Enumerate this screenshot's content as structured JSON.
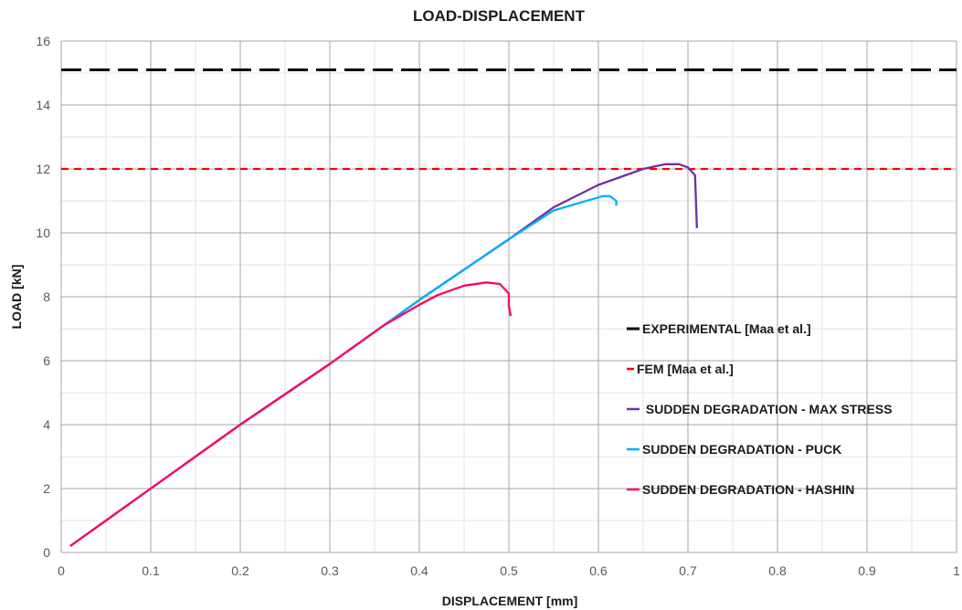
{
  "chart_data": {
    "type": "line",
    "title": "LOAD-DISPLACEMENT",
    "xlabel": "DISPLACEMENT [mm]",
    "ylabel": "LOAD [kN]",
    "xlim": [
      0,
      1
    ],
    "ylim": [
      0,
      16
    ],
    "x_ticks": [
      "0",
      "0.1",
      "0.2",
      "0.3",
      "0.4",
      "0.5",
      "0.6",
      "0.7",
      "0.8",
      "0.9",
      "1"
    ],
    "y_ticks": [
      "0",
      "2",
      "4",
      "6",
      "8",
      "10",
      "12",
      "14",
      "16"
    ],
    "grid": true,
    "legend_position": "right",
    "series": [
      {
        "name": "EXPERIMENTAL [Maa et al.]",
        "color": "#000000",
        "style": "long-dash",
        "points": [
          [
            0,
            15.1
          ],
          [
            1,
            15.1
          ]
        ]
      },
      {
        "name": "FEM [Maa et al.]",
        "color": "#ff0000",
        "style": "dash",
        "points": [
          [
            0,
            12.0
          ],
          [
            1,
            12.0
          ]
        ]
      },
      {
        "name": " SUDDEN DEGRADATION - MAX STRESS",
        "color": "#7030a0",
        "style": "solid",
        "points": [
          [
            0.01,
            0.2
          ],
          [
            0.1,
            2.0
          ],
          [
            0.2,
            4.0
          ],
          [
            0.3,
            5.9
          ],
          [
            0.4,
            7.9
          ],
          [
            0.5,
            9.8
          ],
          [
            0.55,
            10.8
          ],
          [
            0.6,
            11.5
          ],
          [
            0.65,
            12.0
          ],
          [
            0.675,
            12.15
          ],
          [
            0.69,
            12.15
          ],
          [
            0.7,
            12.05
          ],
          [
            0.708,
            11.8
          ],
          [
            0.709,
            11.0
          ],
          [
            0.71,
            10.15
          ]
        ]
      },
      {
        "name": "SUDDEN DEGRADATION - PUCK",
        "color": "#00b0f0",
        "style": "solid",
        "points": [
          [
            0.01,
            0.2
          ],
          [
            0.1,
            2.0
          ],
          [
            0.2,
            4.0
          ],
          [
            0.3,
            5.9
          ],
          [
            0.4,
            7.9
          ],
          [
            0.5,
            9.8
          ],
          [
            0.55,
            10.7
          ],
          [
            0.58,
            10.95
          ],
          [
            0.605,
            11.15
          ],
          [
            0.613,
            11.15
          ],
          [
            0.62,
            11.0
          ],
          [
            0.62,
            10.85
          ]
        ]
      },
      {
        "name": "SUDDEN DEGRADATION - HASHIN",
        "color": "#ff0066",
        "style": "solid",
        "points": [
          [
            0.01,
            0.2
          ],
          [
            0.1,
            2.0
          ],
          [
            0.2,
            4.0
          ],
          [
            0.3,
            5.9
          ],
          [
            0.36,
            7.1
          ],
          [
            0.4,
            7.75
          ],
          [
            0.42,
            8.05
          ],
          [
            0.45,
            8.35
          ],
          [
            0.475,
            8.45
          ],
          [
            0.49,
            8.4
          ],
          [
            0.5,
            8.1
          ],
          [
            0.5,
            7.7
          ],
          [
            0.502,
            7.4
          ]
        ]
      }
    ]
  }
}
